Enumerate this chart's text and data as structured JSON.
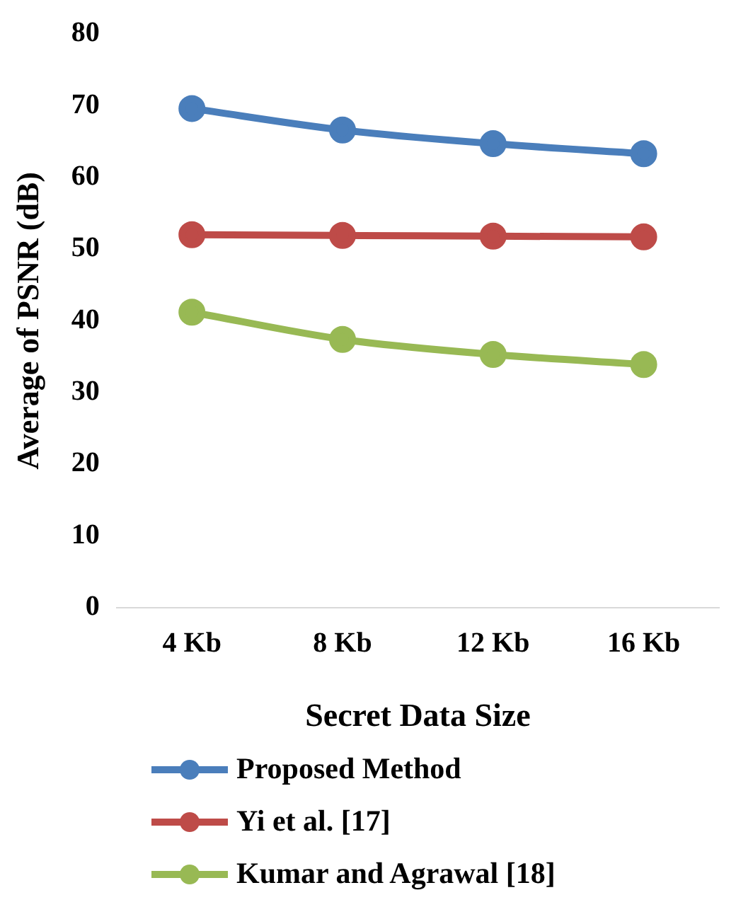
{
  "chart_data": {
    "type": "line",
    "xlabel": "Secret Data Size",
    "ylabel": "Average of PSNR (dB)",
    "categories": [
      "4 Kb",
      "8 Kb",
      "12 Kb",
      "16 Kb"
    ],
    "series": [
      {
        "name": "Proposed Method",
        "color": "#4a7ebb",
        "values": [
          69.6,
          66.6,
          64.7,
          63.3
        ]
      },
      {
        "name": "Yi et al. [17]",
        "color": "#be4b48",
        "values": [
          52.0,
          51.9,
          51.8,
          51.7
        ]
      },
      {
        "name": "Kumar and Agrawal [18]",
        "color": "#98b954",
        "values": [
          41.2,
          37.4,
          35.3,
          33.9
        ]
      }
    ],
    "ylim": [
      0,
      80
    ],
    "yticks": [
      0,
      10,
      20,
      30,
      40,
      50,
      60,
      70,
      80
    ],
    "grid": false,
    "legend": "bottom",
    "marker": "circle",
    "line_style": "solid"
  }
}
